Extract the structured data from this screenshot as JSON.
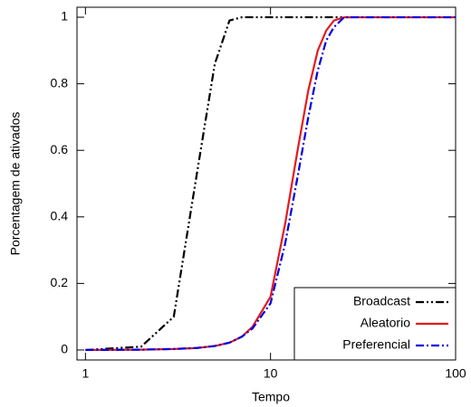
{
  "chart_data": {
    "type": "line",
    "x_label": "Tempo",
    "y_label": "Porcentagem de ativados",
    "log_x": true,
    "x": [
      1,
      2,
      3,
      4,
      5,
      6,
      7,
      8,
      10,
      12,
      14,
      16,
      18,
      20,
      22,
      25,
      30,
      50,
      100
    ],
    "series": [
      {
        "name": "Broadcast",
        "color": "#000000",
        "dash": "dash-dot-dot",
        "values": [
          0,
          0.01,
          0.1,
          0.53,
          0.86,
          0.99,
          1,
          1,
          1,
          1,
          1,
          1,
          1,
          1,
          1,
          1,
          1,
          1,
          1
        ]
      },
      {
        "name": "Aleatorio",
        "color": "#e41a1c",
        "dash": "solid",
        "values": [
          0,
          0.001,
          0.003,
          0.006,
          0.012,
          0.022,
          0.04,
          0.07,
          0.16,
          0.38,
          0.6,
          0.78,
          0.9,
          0.96,
          0.99,
          1,
          1,
          1,
          1
        ]
      },
      {
        "name": "Preferencial",
        "color": "#0000e0",
        "dash": "dash-dot",
        "values": [
          0,
          0.001,
          0.003,
          0.006,
          0.012,
          0.022,
          0.04,
          0.065,
          0.14,
          0.32,
          0.52,
          0.7,
          0.84,
          0.93,
          0.97,
          1,
          1,
          1,
          1
        ]
      }
    ],
    "xlim": [
      0.9,
      100
    ],
    "xticks": [
      1,
      10,
      100
    ],
    "ylim": [
      -0.03,
      1.03
    ],
    "yticks": [
      0,
      0.2,
      0.4,
      0.6,
      0.8,
      1
    ],
    "legend": "lower right"
  }
}
